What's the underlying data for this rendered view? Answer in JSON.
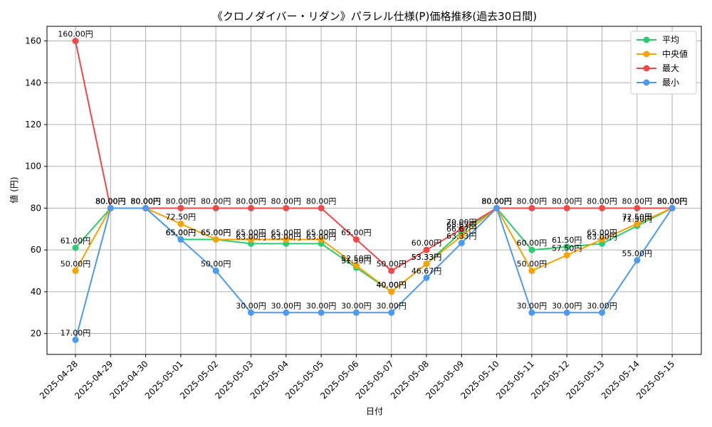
{
  "chart_data": {
    "type": "line",
    "title": "《クロノダイバー・リダン》パラレル仕様(P)価格推移(過去30日間)",
    "xlabel": "日付",
    "ylabel": "値 (円)",
    "ylim": [
      10,
      167
    ],
    "yticks": [
      20,
      40,
      60,
      80,
      100,
      120,
      140,
      160
    ],
    "grid": true,
    "legend_position": "top-right",
    "value_suffix": "円",
    "categories": [
      "2025-04-28",
      "2025-04-29",
      "2025-04-30",
      "2025-05-01",
      "2025-05-02",
      "2025-05-03",
      "2025-05-04",
      "2025-05-05",
      "2025-05-06",
      "2025-05-07",
      "2025-05-08",
      "2025-05-09",
      "2025-05-10",
      "2025-05-11",
      "2025-05-12",
      "2025-05-13",
      "2025-05-14",
      "2025-05-15"
    ],
    "series": [
      {
        "name": "平均",
        "color": "#2ecc71",
        "values": [
          61.0,
          80.0,
          80.0,
          65.0,
          65.0,
          63.0,
          63.0,
          63.0,
          51.5,
          40.0,
          53.33,
          68.67,
          80.0,
          60.0,
          61.5,
          63.0,
          71.5,
          80.0
        ]
      },
      {
        "name": "中央値",
        "color": "#f5a300",
        "values": [
          50.0,
          80.0,
          80.0,
          72.5,
          65.0,
          65.0,
          65.0,
          65.0,
          52.5,
          40.0,
          53.33,
          66.67,
          80.0,
          50.0,
          57.5,
          65.0,
          72.5,
          80.0
        ]
      },
      {
        "name": "最大",
        "color": "#f04848",
        "values": [
          160.0,
          80.0,
          80.0,
          80.0,
          80.0,
          80.0,
          80.0,
          80.0,
          65.0,
          50.0,
          60.0,
          70.0,
          80.0,
          80.0,
          80.0,
          80.0,
          80.0,
          80.0
        ]
      },
      {
        "name": "最小",
        "color": "#4c9aee",
        "values": [
          17.0,
          80.0,
          80.0,
          65.0,
          50.0,
          30.0,
          30.0,
          30.0,
          30.0,
          30.0,
          46.67,
          63.33,
          80.0,
          30.0,
          30.0,
          30.0,
          55.0,
          80.0
        ]
      }
    ]
  }
}
